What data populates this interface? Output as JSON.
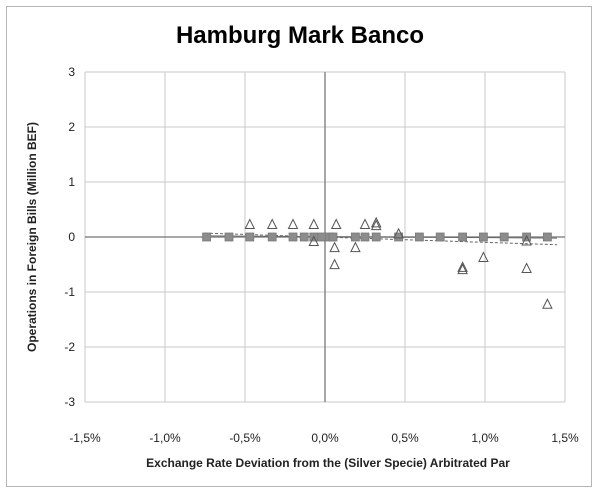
{
  "chart_data": {
    "type": "scatter",
    "title": "Hamburg Mark Banco",
    "xlabel": "Exchange Rate Deviation from the (Silver Specie) Arbitrated Par",
    "ylabel": "Operations in Foreign Bills (Million BEF)",
    "xlim": [
      -1.5,
      1.5
    ],
    "ylim": [
      -3,
      3
    ],
    "x_ticks": [
      -1.5,
      -1.0,
      -0.5,
      0.0,
      0.5,
      1.0,
      1.5
    ],
    "x_tick_labels": [
      "-1,5%",
      "-1,0%",
      "-0,5%",
      "0,0%",
      "0,5%",
      "1,0%",
      "1,5%"
    ],
    "y_ticks": [
      3,
      2,
      1,
      0,
      -1,
      -2,
      -3
    ],
    "y_tick_labels": [
      "3",
      "2",
      "1",
      "0",
      "-1",
      "-2",
      "-3"
    ],
    "grid": true,
    "colors": {
      "squares": "#8c8c8c",
      "triangles": "#555555",
      "grid": "#c8c8c8",
      "zero_line": "#8a8a8a",
      "trend_square": "#666666",
      "trend_triangle": "#666666"
    },
    "series": [
      {
        "marker": "square",
        "points": [
          {
            "x": -0.74,
            "y": 0.0
          },
          {
            "x": -0.6,
            "y": 0.0
          },
          {
            "x": -0.47,
            "y": 0.0
          },
          {
            "x": -0.33,
            "y": 0.0
          },
          {
            "x": -0.2,
            "y": 0.0
          },
          {
            "x": -0.13,
            "y": 0.0
          },
          {
            "x": -0.07,
            "y": 0.0
          },
          {
            "x": -0.02,
            "y": 0.0
          },
          {
            "x": 0.03,
            "y": 0.0
          },
          {
            "x": 0.05,
            "y": 0.0
          },
          {
            "x": 0.19,
            "y": 0.0
          },
          {
            "x": 0.25,
            "y": 0.0
          },
          {
            "x": 0.32,
            "y": 0.0
          },
          {
            "x": 0.46,
            "y": 0.0
          },
          {
            "x": 0.59,
            "y": 0.0
          },
          {
            "x": 0.72,
            "y": 0.0
          },
          {
            "x": 0.86,
            "y": 0.0
          },
          {
            "x": 0.99,
            "y": 0.0
          },
          {
            "x": 1.12,
            "y": 0.0
          },
          {
            "x": 1.26,
            "y": 0.0
          },
          {
            "x": 1.39,
            "y": 0.0
          }
        ],
        "trendline": {
          "x": [
            -0.75,
            1.45
          ],
          "y": [
            0.02,
            -0.02
          ],
          "style": "solid"
        }
      },
      {
        "marker": "triangle",
        "points": [
          {
            "x": -0.47,
            "y": 0.22
          },
          {
            "x": -0.33,
            "y": 0.22
          },
          {
            "x": -0.2,
            "y": 0.22
          },
          {
            "x": -0.07,
            "y": 0.22
          },
          {
            "x": -0.07,
            "y": -0.09
          },
          {
            "x": 0.07,
            "y": 0.22
          },
          {
            "x": 0.06,
            "y": -0.2
          },
          {
            "x": 0.06,
            "y": -0.51
          },
          {
            "x": 0.19,
            "y": -0.2
          },
          {
            "x": 0.25,
            "y": 0.22
          },
          {
            "x": 0.32,
            "y": 0.25
          },
          {
            "x": 0.32,
            "y": 0.2
          },
          {
            "x": 0.46,
            "y": 0.05
          },
          {
            "x": 0.86,
            "y": -0.56
          },
          {
            "x": 0.86,
            "y": -0.6
          },
          {
            "x": 0.99,
            "y": -0.38
          },
          {
            "x": 1.26,
            "y": -0.08
          },
          {
            "x": 1.26,
            "y": -0.58
          },
          {
            "x": 1.39,
            "y": -1.23
          }
        ],
        "trendline": {
          "x": [
            -0.75,
            1.45
          ],
          "y": [
            0.07,
            -0.14
          ],
          "style": "dashed"
        }
      }
    ]
  }
}
